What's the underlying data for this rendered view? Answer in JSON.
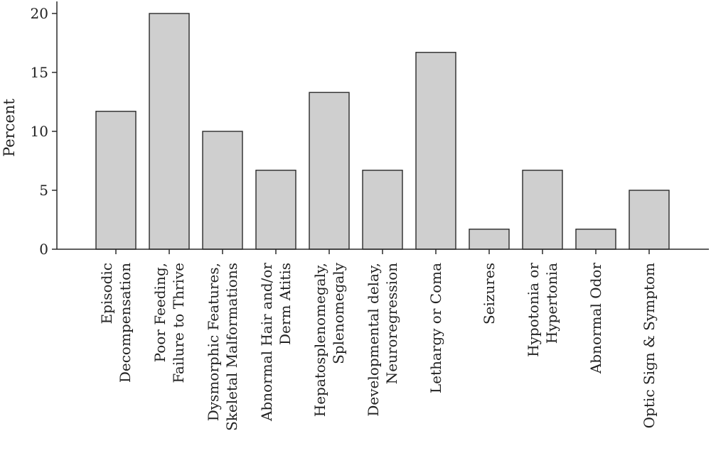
{
  "chart_data": {
    "type": "bar",
    "title": "",
    "xlabel": "",
    "ylabel": "Percent",
    "ylim": [
      0,
      20
    ],
    "yticks": [
      0,
      5,
      10,
      15,
      20
    ],
    "grid": false,
    "bar_color": "#cfcfcf",
    "categories": [
      [
        "Episodic",
        "Decompensation"
      ],
      [
        "Poor Feeding,",
        "Failure to Thrive"
      ],
      [
        "Dysmorphic Features,",
        "Skeletal Malformations"
      ],
      [
        "Abnormal Hair and/or",
        "Derm Atitis"
      ],
      [
        "Hepatosplenomegaly,",
        "Splenomegaly"
      ],
      [
        "Developmental delay,",
        "Neuroregression"
      ],
      [
        "Lethargy or Coma"
      ],
      [
        "Seizures"
      ],
      [
        "Hypotonia or",
        "Hypertonia"
      ],
      [
        "Abnormal Odor"
      ],
      [
        "Optic Sign & Symptom"
      ]
    ],
    "values": [
      11.7,
      20,
      10,
      6.7,
      13.3,
      6.7,
      16.7,
      1.7,
      6.7,
      1.7,
      5
    ]
  }
}
